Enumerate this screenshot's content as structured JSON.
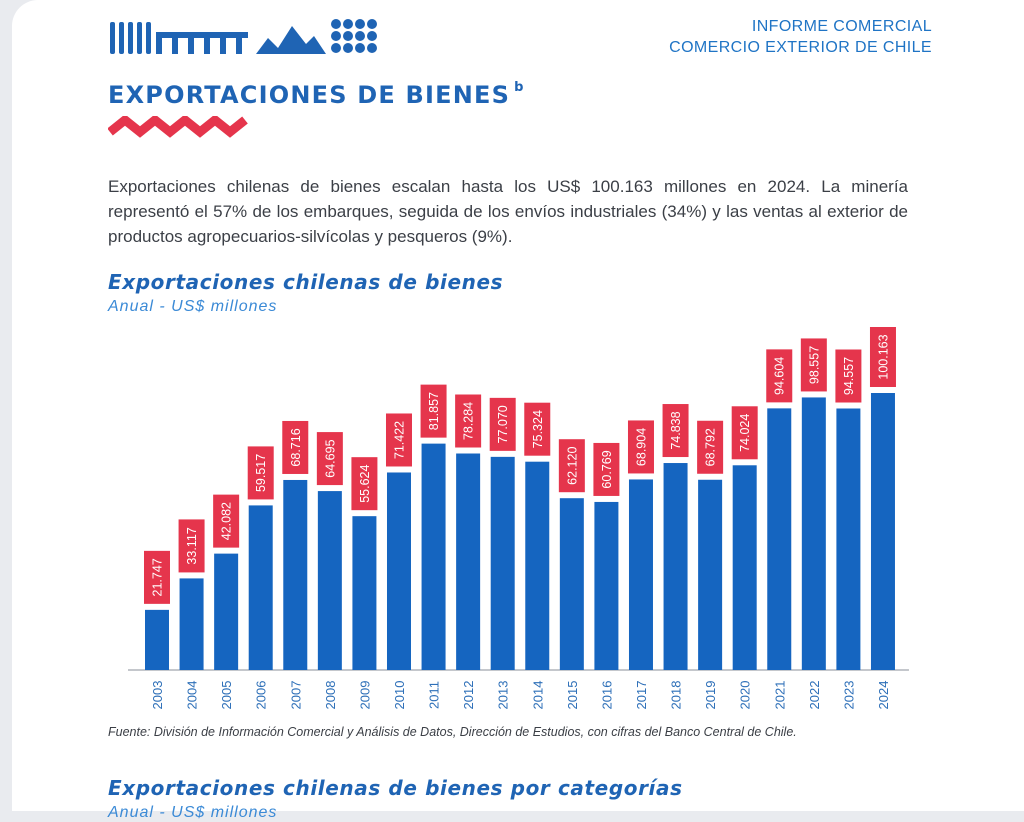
{
  "header": {
    "report_line1": "INFORME COMERCIAL",
    "report_line2": "COMERCIO EXTERIOR DE CHILE"
  },
  "section": {
    "title": "EXPORTACIONES DE BIENES",
    "superscript": "b"
  },
  "intro": "Exportaciones chilenas de bienes escalan hasta los US$ 100.163 millones en 2024. La minería representó el 57% de los embarques, seguida de los envíos industriales (34%) y las ventas al exterior de productos agropecuarios-silvícolas y pesqueros (9%).",
  "colors": {
    "brand_blue": "#1f64b4",
    "bar_blue": "#1565c0",
    "label_red": "#e5354c",
    "zigzag_red": "#e5354c"
  },
  "chart_data": {
    "type": "bar",
    "title": "Exportaciones chilenas de bienes",
    "subtitle": "Anual - US$ millones",
    "categories": [
      "2003",
      "2004",
      "2005",
      "2006",
      "2007",
      "2008",
      "2009",
      "2010",
      "2011",
      "2012",
      "2013",
      "2014",
      "2015",
      "2016",
      "2017",
      "2018",
      "2019",
      "2020",
      "2021",
      "2022",
      "2023",
      "2024"
    ],
    "values": [
      21747,
      33117,
      42082,
      59517,
      68716,
      64695,
      55624,
      71422,
      81857,
      78284,
      77070,
      75324,
      62120,
      60769,
      68904,
      74838,
      68792,
      74024,
      94604,
      98557,
      94557,
      100163
    ],
    "value_labels": [
      "21.747",
      "33.117",
      "42.082",
      "59.517",
      "68.716",
      "64.695",
      "55.624",
      "71.422",
      "81.857",
      "78.284",
      "77.070",
      "75.324",
      "62.120",
      "60.769",
      "68.904",
      "74.838",
      "68.792",
      "74.024",
      "94.604",
      "98.557",
      "94.557",
      "100.163"
    ],
    "ylim": [
      0,
      100163
    ],
    "grid": false,
    "legend": "none"
  },
  "source": "Fuente: División de Información Comercial y Análisis de Datos, Dirección de Estudios, con cifras del Banco Central de Chile.",
  "next_chart": {
    "title": "Exportaciones chilenas de bienes por categorías",
    "subtitle": "Anual - US$ millones"
  }
}
